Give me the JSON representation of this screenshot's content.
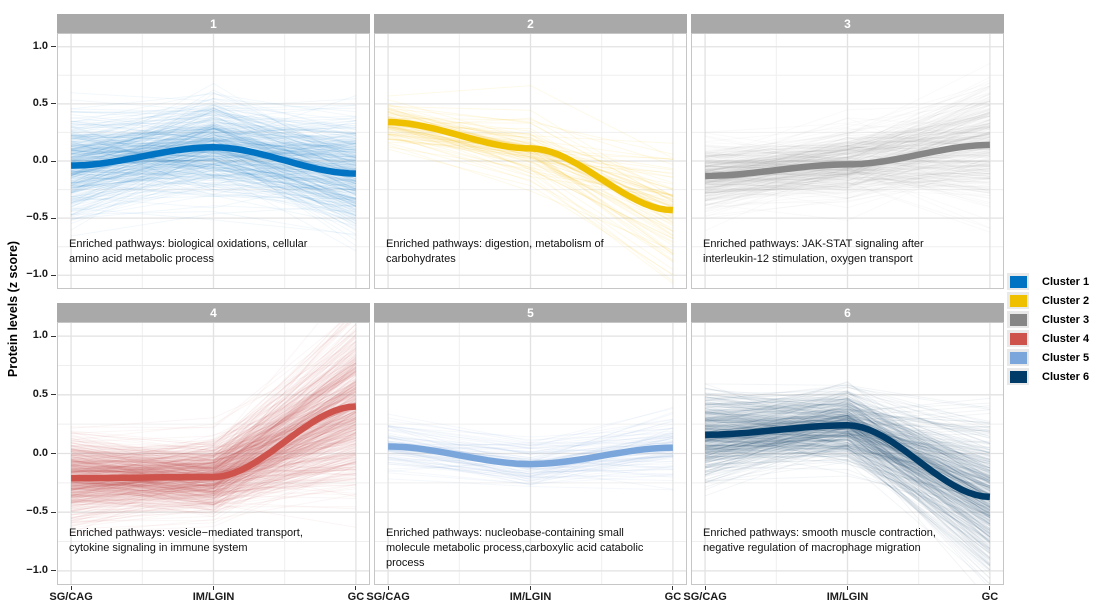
{
  "figure": {
    "y_axis_label": "Protein levels (z score)",
    "x_tick_labels": [
      "SG/CAG",
      "IM/LGIN",
      "GC"
    ],
    "y_tick_labels": [
      "1.0",
      "0.5",
      "0.0",
      "−0.5",
      "−1.0"
    ],
    "legend": [
      {
        "label": "Cluster 1",
        "color": "#0073C2"
      },
      {
        "label": "Cluster 2",
        "color": "#EFC000"
      },
      {
        "label": "Cluster 3",
        "color": "#868686"
      },
      {
        "label": "Cluster 4",
        "color": "#CD534C"
      },
      {
        "label": "Cluster 5",
        "color": "#7AA6DC"
      },
      {
        "label": "Cluster 6",
        "color": "#003C67"
      }
    ]
  },
  "chart_data": {
    "type": "line",
    "x": [
      "SG/CAG",
      "IM/LGIN",
      "GC"
    ],
    "ylabel": "Protein levels (z score)",
    "ylim": [
      -1.12,
      1.12
    ],
    "y_major_ticks": [
      1.0,
      0.5,
      0.0,
      -0.5,
      -1.0
    ],
    "y_minor_ticks": [
      0.75,
      0.25,
      -0.25,
      -0.75
    ],
    "grid": true,
    "legend_position": "right",
    "panels": [
      {
        "strip": "1",
        "cluster": "Cluster 1",
        "color": "#0073C2",
        "mean_trajectory": [
          -0.04,
          0.12,
          -0.11
        ],
        "annotation": "Enriched pathways: biological oxidations, cellular\namino acid metabolic process",
        "members": {
          "count": 420,
          "spread": [
            0.21,
            0.2,
            0.24
          ],
          "opacity": 0.05
        }
      },
      {
        "strip": "2",
        "cluster": "Cluster 2",
        "color": "#EFC000",
        "mean_trajectory": [
          0.34,
          0.11,
          -0.43
        ],
        "annotation": "Enriched pathways: digestion, metabolism of\ncarbohydrates",
        "members": {
          "count": 90,
          "spread": [
            0.1,
            0.14,
            0.24
          ],
          "opacity": 0.09
        }
      },
      {
        "strip": "3",
        "cluster": "Cluster 3",
        "color": "#868686",
        "mean_trajectory": [
          -0.13,
          -0.03,
          0.14
        ],
        "annotation": "Enriched pathways: JAK-STAT signaling after\ninterleukin-12 stimulation, oxygen transport",
        "members": {
          "count": 340,
          "spread": [
            0.14,
            0.14,
            0.26
          ],
          "opacity": 0.045
        }
      },
      {
        "strip": "4",
        "cluster": "Cluster 4",
        "color": "#CD534C",
        "mean_trajectory": [
          -0.21,
          -0.2,
          0.4
        ],
        "annotation": "Enriched pathways: vesicle−mediated transport,\ncytokine signaling in immune system",
        "members": {
          "count": 620,
          "spread": [
            0.16,
            0.14,
            0.33
          ],
          "opacity": 0.05
        }
      },
      {
        "strip": "5",
        "cluster": "Cluster 5",
        "color": "#7AA6DC",
        "mean_trajectory": [
          0.06,
          -0.09,
          0.05
        ],
        "annotation": "Enriched pathways: nucleobase-containing small\nmolecule metabolic process,carboxylic acid catabolic\nprocess",
        "members": {
          "count": 85,
          "spread": [
            0.11,
            0.1,
            0.14
          ],
          "opacity": 0.08
        }
      },
      {
        "strip": "6",
        "cluster": "Cluster 6",
        "color": "#003C67",
        "mean_trajectory": [
          0.16,
          0.24,
          -0.37
        ],
        "annotation": "Enriched pathways: smooth muscle contraction,\nnegative regulation of macrophage migration",
        "members": {
          "count": 470,
          "spread": [
            0.17,
            0.14,
            0.3
          ],
          "opacity": 0.05
        }
      }
    ]
  }
}
